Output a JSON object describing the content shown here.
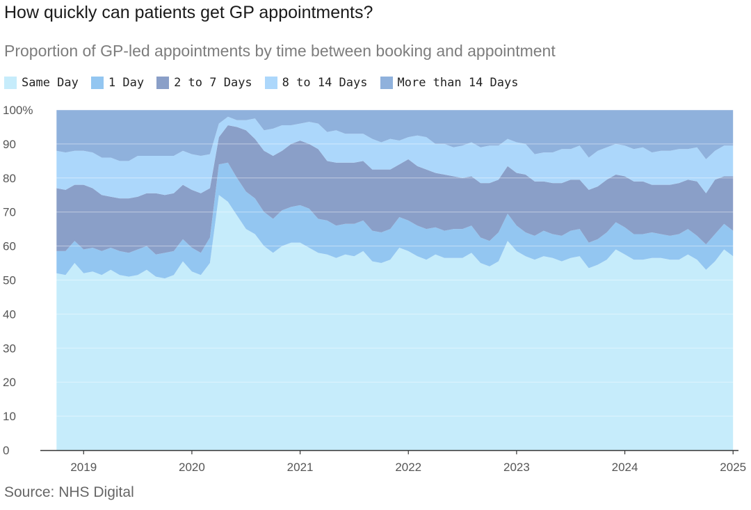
{
  "title": "How quickly can patients get GP appointments?",
  "subtitle": "Proportion of GP-led appointments by time between booking and appointment",
  "source": "Source: NHS Digital",
  "colors": {
    "same_day": "#c6ecfb",
    "one_day": "#93c6f1",
    "two_to_seven": "#8a9fc8",
    "eight_to_fourteen": "#acd7fb",
    "more_than_fourteen": "#8fb1dc",
    "axis": "#333333",
    "grid": "#dcdcdc"
  },
  "chart_data": {
    "type": "area",
    "stacked": true,
    "x_unit": "year",
    "x": [
      2018.75,
      2018.833,
      2018.917,
      2019.0,
      2019.083,
      2019.167,
      2019.25,
      2019.333,
      2019.417,
      2019.5,
      2019.583,
      2019.667,
      2019.75,
      2019.833,
      2019.917,
      2020.0,
      2020.083,
      2020.167,
      2020.25,
      2020.333,
      2020.417,
      2020.5,
      2020.583,
      2020.667,
      2020.75,
      2020.833,
      2020.917,
      2021.0,
      2021.083,
      2021.167,
      2021.25,
      2021.333,
      2021.417,
      2021.5,
      2021.583,
      2021.667,
      2021.75,
      2021.833,
      2021.917,
      2022.0,
      2022.083,
      2022.167,
      2022.25,
      2022.333,
      2022.417,
      2022.5,
      2022.583,
      2022.667,
      2022.75,
      2022.833,
      2022.917,
      2023.0,
      2023.083,
      2023.167,
      2023.25,
      2023.333,
      2023.417,
      2023.5,
      2023.583,
      2023.667,
      2023.75,
      2023.833,
      2023.917,
      2024.0,
      2024.083,
      2024.167,
      2024.25,
      2024.333,
      2024.417,
      2024.5,
      2024.583,
      2024.667,
      2024.75,
      2024.833,
      2024.917,
      2025.0
    ],
    "series": [
      {
        "name": "Same Day",
        "values": [
          52,
          51.5,
          55,
          52,
          52.5,
          51.5,
          53,
          51.5,
          51,
          51.5,
          53,
          51,
          50.5,
          51.5,
          55.5,
          52.5,
          51.5,
          55,
          75,
          73,
          69,
          65,
          63.5,
          60,
          58,
          60,
          61,
          61,
          59.5,
          58,
          57.5,
          56.5,
          57.5,
          57,
          58.5,
          55.5,
          55,
          56,
          59.5,
          58.5,
          57,
          56,
          57.5,
          56.5,
          56.5,
          56.5,
          58,
          55,
          54,
          55.5,
          61.5,
          58.5,
          57,
          56,
          57,
          56.5,
          55.5,
          56.5,
          57,
          53.5,
          54.5,
          56,
          59,
          57.5,
          56,
          56,
          56.5,
          56.5,
          56,
          56,
          57.5,
          56,
          53,
          55.5,
          59,
          57
        ]
      },
      {
        "name": "1 Day",
        "values": [
          6.5,
          7,
          6.5,
          7,
          7,
          7,
          6.5,
          7,
          7,
          7.5,
          7,
          6.5,
          7.5,
          7,
          6.5,
          7,
          6.5,
          7.5,
          9,
          11.5,
          11,
          11,
          10.5,
          10,
          10,
          10.5,
          10.5,
          11,
          11.5,
          10,
          10,
          9.5,
          9,
          9.5,
          9,
          9,
          9,
          9,
          9,
          9,
          9,
          9,
          8,
          8,
          8.5,
          8.5,
          8,
          7.5,
          7.5,
          8.5,
          8,
          7.5,
          7,
          7,
          7.5,
          7,
          7.5,
          8,
          8,
          7.5,
          7.5,
          8,
          8,
          8,
          7.5,
          7.5,
          7.5,
          7,
          7,
          7.5,
          7.5,
          7,
          7.5,
          8,
          7.5,
          7.5
        ]
      },
      {
        "name": "2 to 7 Days",
        "values": [
          18.5,
          18,
          16.5,
          19,
          17.5,
          16.5,
          15,
          15.5,
          16,
          15.5,
          15.5,
          18,
          17,
          17,
          16,
          17,
          17.5,
          14.5,
          8,
          11,
          15,
          18,
          17.5,
          18,
          18.5,
          17.5,
          18.5,
          19,
          19,
          20.5,
          17.5,
          18.5,
          18,
          18,
          17.5,
          18,
          18.5,
          17.5,
          15.5,
          18,
          17.5,
          17.5,
          16,
          16.5,
          15.5,
          15,
          14.5,
          16,
          17,
          15.5,
          14,
          15.5,
          17,
          16,
          14.5,
          15,
          15.5,
          15,
          14.5,
          15.5,
          15.5,
          15.5,
          14,
          15,
          15.5,
          15.5,
          14,
          14.5,
          15,
          15,
          14.5,
          16,
          15,
          16,
          14,
          16
        ]
      },
      {
        "name": "8 to 14 Days",
        "values": [
          11,
          11,
          10,
          10,
          10.5,
          11,
          11.5,
          11,
          11,
          12,
          11,
          11,
          11.5,
          11,
          10,
          10.5,
          11,
          10,
          4,
          2.5,
          2,
          3,
          6,
          6,
          8,
          7.5,
          5.5,
          5,
          6.5,
          7.5,
          8.5,
          9.5,
          8.5,
          8.5,
          8,
          9,
          8,
          9,
          7,
          6.5,
          9,
          9.5,
          8.5,
          9,
          8.5,
          9.5,
          10,
          10.5,
          11,
          10,
          8,
          9,
          9,
          8,
          8.5,
          9,
          10,
          9,
          10,
          9.5,
          10.5,
          9.5,
          9,
          9,
          9.5,
          10,
          9.5,
          10,
          10,
          10,
          9,
          10,
          10,
          8.5,
          9,
          9
        ]
      },
      {
        "name": "More than 14 Days",
        "values": [
          12,
          12.5,
          12,
          12,
          12.5,
          14,
          14,
          15,
          15,
          13.5,
          13.5,
          13.5,
          13.5,
          13.5,
          12,
          13,
          13.5,
          13,
          4,
          2,
          3,
          3,
          2.5,
          6,
          5.5,
          4.5,
          4.5,
          4,
          3.5,
          4,
          6.5,
          6,
          7,
          7,
          7,
          8.5,
          9.5,
          8.5,
          9,
          8,
          7.5,
          8,
          10,
          10,
          11,
          10.5,
          9.5,
          11,
          10.5,
          10.5,
          8.5,
          9.5,
          10,
          13,
          12.5,
          12.5,
          11.5,
          11.5,
          10.5,
          14,
          12,
          11,
          10,
          10.5,
          11.5,
          11,
          12.5,
          12,
          12,
          11.5,
          11.5,
          11,
          14.5,
          12,
          10.5,
          10.5
        ]
      }
    ],
    "legend": [
      "Same Day",
      "1 Day",
      "2 to 7 Days",
      "8 to 14 Days",
      "More than 14 Days"
    ],
    "legend_position": "top-left",
    "x_ticks": [
      "2019",
      "2020",
      "2021",
      "2022",
      "2023",
      "2024",
      "2025"
    ],
    "y_ticks": [
      "0",
      "10",
      "20",
      "30",
      "40",
      "50",
      "60",
      "70",
      "80",
      "90",
      "100%"
    ],
    "xlim": [
      2018.6,
      2025.05
    ],
    "ylim": [
      0,
      100
    ],
    "grid": "horizontal",
    "xlabel": "",
    "ylabel": ""
  }
}
